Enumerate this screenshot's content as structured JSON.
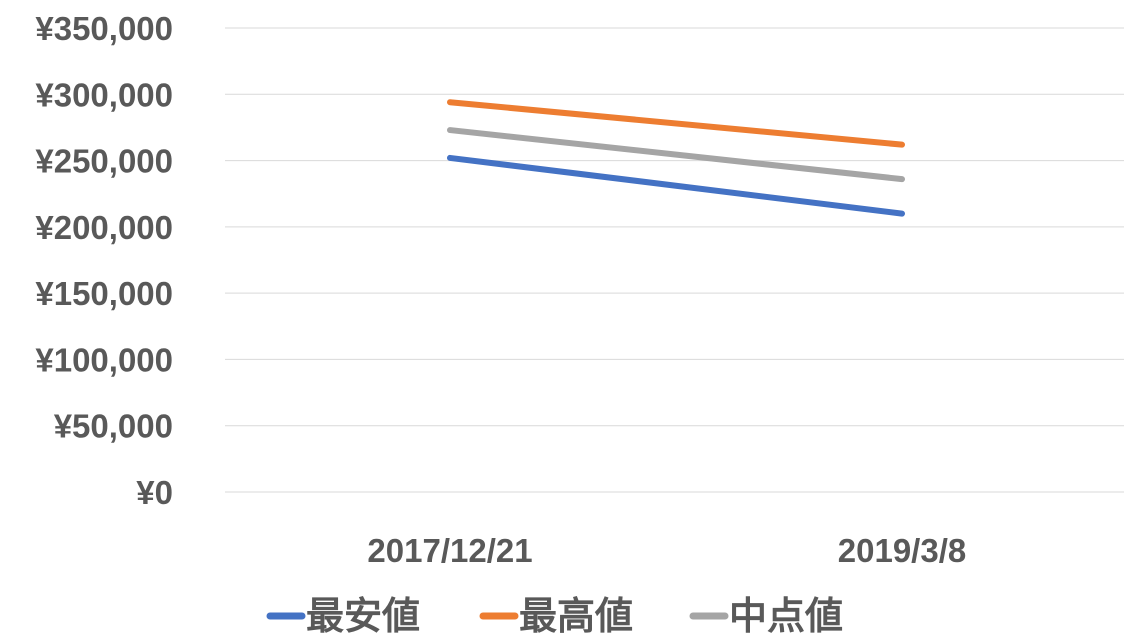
{
  "chart_data": {
    "type": "line",
    "categories": [
      "2017/12/21",
      "2019/3/8"
    ],
    "series": [
      {
        "name": "最安値",
        "values": [
          252000,
          210000
        ],
        "color": "#4472C4"
      },
      {
        "name": "最高値",
        "values": [
          294000,
          262000
        ],
        "color": "#ED7D31"
      },
      {
        "name": "中点値",
        "values": [
          273000,
          236000
        ],
        "color": "#A5A5A5"
      }
    ],
    "yticks": [
      "¥0",
      "¥50,000",
      "¥100,000",
      "¥150,000",
      "¥200,000",
      "¥250,000",
      "¥300,000",
      "¥350,000"
    ],
    "ylim": [
      0,
      350000
    ],
    "grid": true,
    "legend_position": "bottom"
  }
}
